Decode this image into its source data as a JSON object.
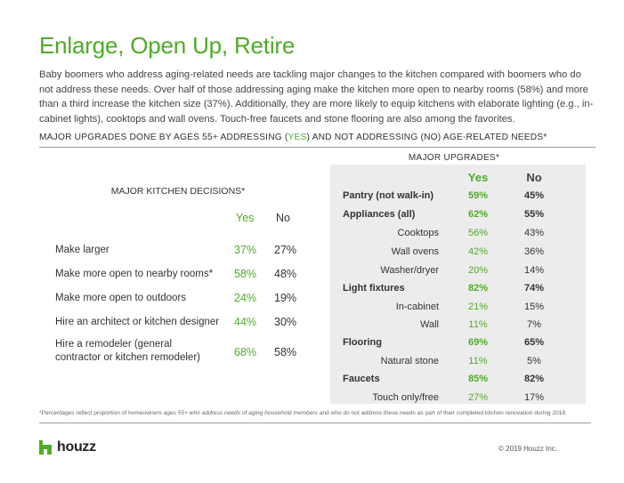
{
  "title": "Enlarge, Open Up, Retire",
  "intro": "Baby boomers who address aging-related needs are tackling major changes to the kitchen compared with boomers who do not address these needs. Over half of those addressing aging make the kitchen more open to nearby rooms (58%) and more than a third increase the kitchen size (37%). Additionally, they are more likely to equip kitchens with elaborate lighting (e.g., in-cabinet lights), cooktops and wall ovens. Touch-free faucets and stone flooring are also among the favorites.",
  "section_heading": {
    "before": "MAJOR UPGRADES DONE BY AGES 55+ ADDRESSING (",
    "highlight": "YES",
    "after": ") AND NOT ADDRESSING (NO) AGE-RELATED NEEDS*"
  },
  "left_table": {
    "title": "MAJOR KITCHEN DECISIONS*",
    "col_yes": "Yes",
    "col_no": "No",
    "rows": [
      {
        "label": "Make larger",
        "yes": "37%",
        "no": "27%"
      },
      {
        "label": "Make more open to nearby rooms*",
        "yes": "58%",
        "no": "48%"
      },
      {
        "label": "Make more open to outdoors",
        "yes": "24%",
        "no": "19%"
      },
      {
        "label": "Hire an architect or kitchen designer",
        "yes": "44%",
        "no": "30%"
      },
      {
        "label": "Hire a remodeler (general contractor or kitchen remodeler)",
        "yes": "68%",
        "no": "58%"
      }
    ]
  },
  "right_table": {
    "title": "MAJOR UPGRADES*",
    "col_yes": "Yes",
    "col_no": "No",
    "rows": [
      {
        "label": "Pantry (not walk-in)",
        "yes": "59%",
        "no": "45%"
      },
      {
        "label": "Appliances (all)",
        "yes": "62%",
        "no": "55%"
      },
      {
        "label": "Cooktops",
        "yes": "56%",
        "no": "43%"
      },
      {
        "label": "Wall ovens",
        "yes": "42%",
        "no": "36%"
      },
      {
        "label": "Washer/dryer",
        "yes": "20%",
        "no": "14%"
      },
      {
        "label": "Light fixtures",
        "yes": "82%",
        "no": "74%"
      },
      {
        "label": "In-cabinet",
        "yes": "21%",
        "no": "15%"
      },
      {
        "label": "Wall",
        "yes": "11%",
        "no": "7%"
      },
      {
        "label": "Flooring",
        "yes": "69%",
        "no": "65%"
      },
      {
        "label": "Natural stone",
        "yes": "11%",
        "no": "5%"
      },
      {
        "label": "Faucets",
        "yes": "85%",
        "no": "82%"
      },
      {
        "label": "Touch only/free",
        "yes": "27%",
        "no": "17%"
      }
    ]
  },
  "footnote": {
    "part1": "*Percentages reflect proportion of homeowners ",
    "italic": "ages 55+ who address needs of aging household members",
    "part2": " and who do not address these needs as part of their completed kitchen renovation during 2018."
  },
  "logo_text": "houzz",
  "copyright": "© 2019 Houzz Inc.",
  "colors": {
    "accent": "#4dac26",
    "panel": "#ececec",
    "text": "#333333"
  },
  "icons": {
    "logo": "houzz-logo-icon"
  }
}
